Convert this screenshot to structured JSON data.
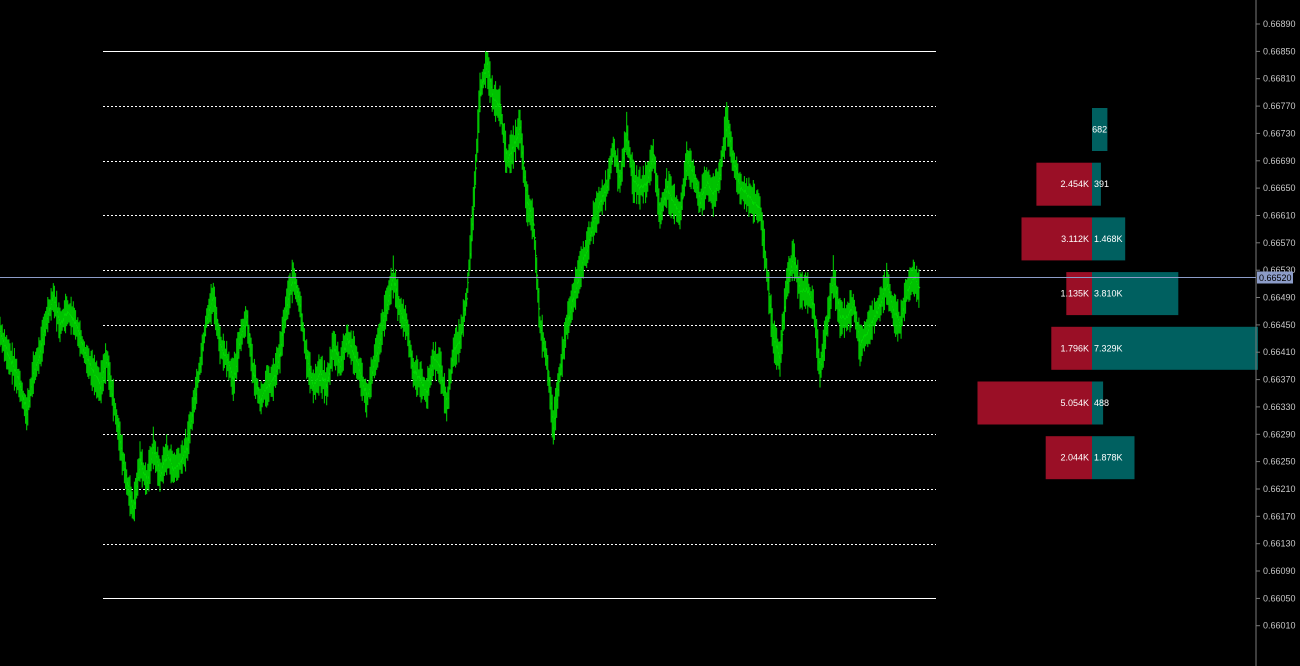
{
  "chart_data": {
    "type": "bar",
    "subtype": "price-chart-with-volume-profile",
    "colors": {
      "background": "#000000",
      "price_line": "#00d800",
      "level_line": "#ffffff",
      "sell_bar": "#9a0f26",
      "buy_bar": "#006060",
      "axis_text": "#c8c8c8",
      "current_price_line": "#8c9cc8"
    },
    "y_axis": {
      "ylim": [
        0.6598,
        0.6692
      ],
      "tick_labels": [
        "0.66890",
        "0.66850",
        "0.66810",
        "0.66770",
        "0.66730",
        "0.66690",
        "0.66650",
        "0.66610",
        "0.66570",
        "0.66530",
        "0.66490",
        "0.66450",
        "0.66410",
        "0.66370",
        "0.66330",
        "0.66290",
        "0.66250",
        "0.66210",
        "0.66170",
        "0.66130",
        "0.66090",
        "0.66050",
        "0.66010"
      ],
      "tick_values": [
        0.6689,
        0.6685,
        0.6681,
        0.6677,
        0.6673,
        0.6669,
        0.6665,
        0.6661,
        0.6657,
        0.6653,
        0.6649,
        0.6645,
        0.6641,
        0.6637,
        0.6633,
        0.6629,
        0.6625,
        0.6621,
        0.6617,
        0.6613,
        0.6609,
        0.6605,
        0.6601
      ]
    },
    "current_price": {
      "value": 0.6652,
      "label": "0.66520"
    },
    "range_levels": {
      "high": 0.6685,
      "low": 0.6605,
      "levels": [
        0.6685,
        0.6677,
        0.6669,
        0.6661,
        0.6653,
        0.6645,
        0.6637,
        0.6629,
        0.6621,
        0.6613,
        0.6605
      ]
    },
    "volume_profile": [
      {
        "sell_label": "",
        "buy_label": "682",
        "sell": 0,
        "buy": 682
      },
      {
        "sell_label": "2.454K",
        "buy_label": "391",
        "sell": 2454,
        "buy": 391
      },
      {
        "sell_label": "3.112K",
        "buy_label": "1.468K",
        "sell": 3112,
        "buy": 1468
      },
      {
        "sell_label": "1.135K",
        "buy_label": "3.810K",
        "sell": 1135,
        "buy": 3810
      },
      {
        "sell_label": "1.796K",
        "buy_label": "7.329K",
        "sell": 1796,
        "buy": 7329
      },
      {
        "sell_label": "5.054K",
        "buy_label": "488",
        "sell": 5054,
        "buy": 488
      },
      {
        "sell_label": "2.044K",
        "buy_label": "1.878K",
        "sell": 2044,
        "buy": 1878
      }
    ],
    "price_series": [
      0.6644,
      0.6641,
      0.6639,
      0.6636,
      0.6632,
      0.6638,
      0.6641,
      0.6646,
      0.6649,
      0.6645,
      0.6647,
      0.6646,
      0.6643,
      0.664,
      0.6638,
      0.6636,
      0.664,
      0.6634,
      0.6628,
      0.6622,
      0.6618,
      0.6625,
      0.6622,
      0.6627,
      0.6623,
      0.6626,
      0.6624,
      0.6625,
      0.6627,
      0.6633,
      0.6639,
      0.6646,
      0.6649,
      0.6642,
      0.664,
      0.6637,
      0.6643,
      0.6646,
      0.6638,
      0.6634,
      0.6636,
      0.6637,
      0.6641,
      0.6648,
      0.6652,
      0.6648,
      0.664,
      0.6636,
      0.6638,
      0.6636,
      0.6642,
      0.6639,
      0.6643,
      0.6641,
      0.6638,
      0.6634,
      0.6639,
      0.6643,
      0.6648,
      0.6652,
      0.6647,
      0.6645,
      0.6638,
      0.6637,
      0.6635,
      0.664,
      0.6639,
      0.6633,
      0.6641,
      0.6643,
      0.6649,
      0.6662,
      0.6679,
      0.6683,
      0.6678,
      0.6677,
      0.6669,
      0.6671,
      0.6674,
      0.6663,
      0.666,
      0.6645,
      0.664,
      0.663,
      0.6638,
      0.6645,
      0.6649,
      0.6653,
      0.6656,
      0.666,
      0.6663,
      0.6665,
      0.6671,
      0.6666,
      0.6673,
      0.6666,
      0.6665,
      0.6666,
      0.667,
      0.6661,
      0.6665,
      0.6663,
      0.6661,
      0.6669,
      0.6667,
      0.6663,
      0.6666,
      0.6664,
      0.6667,
      0.6675,
      0.6669,
      0.6665,
      0.6664,
      0.6663,
      0.6662,
      0.6653,
      0.6643,
      0.664,
      0.6651,
      0.6655,
      0.665,
      0.665,
      0.6648,
      0.6638,
      0.6645,
      0.6652,
      0.6646,
      0.6646,
      0.6648,
      0.6642,
      0.6644,
      0.6646,
      0.6648,
      0.6651,
      0.6647,
      0.6645,
      0.665,
      0.6652,
      0.665
    ]
  }
}
